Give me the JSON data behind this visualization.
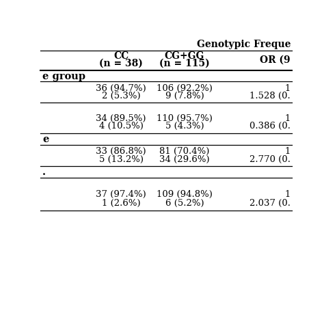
{
  "title": "Genotypic Freque",
  "col1_header_line1": "CC",
  "col1_header_line2": "(n = 38)",
  "col2_header_line1": "CG+GG",
  "col2_header_line2": "(n = 115)",
  "col3_header": "OR (9",
  "sections": [
    {
      "label": "e group",
      "rows": [
        [
          "36 (94.7%)",
          "106 (92.2%)",
          "1"
        ],
        [
          "2 (5.3%)",
          "9 (7.8%)",
          "1.528 (0."
        ]
      ]
    },
    {
      "label": "",
      "rows": [
        [
          "34 (89.5%)",
          "110 (95.7%)",
          "1"
        ],
        [
          "4 (10.5%)",
          "5 (4.3%)",
          "0.386 (0."
        ]
      ]
    },
    {
      "label": "e",
      "rows": [
        [
          "33 (86.8%)",
          "81 (70.4%)",
          "1"
        ],
        [
          "5 (13.2%)",
          "34 (29.6%)",
          "2.770 (0."
        ]
      ]
    },
    {
      "label": ".",
      "rows": [
        [
          "37 (97.4%)",
          "109 (94.8%)",
          "1"
        ],
        [
          "1 (2.6%)",
          "6 (5.2%)",
          "2.037 (0."
        ]
      ]
    }
  ],
  "bg_color": "#ffffff",
  "text_color": "#000000",
  "line_color": "#000000"
}
